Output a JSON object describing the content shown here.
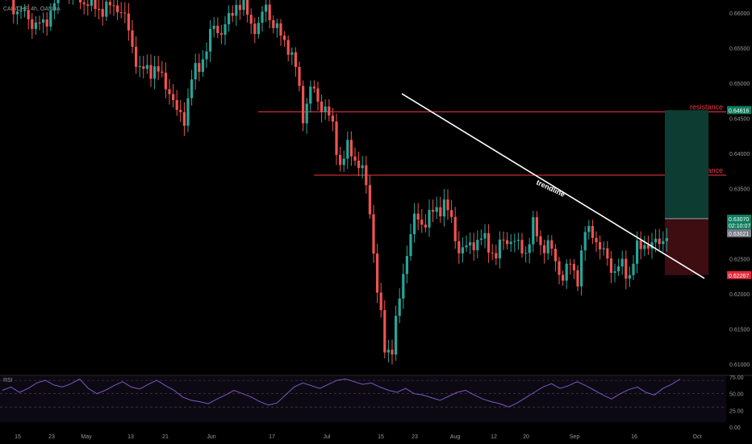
{
  "chart_data": {
    "type": "candlestick",
    "symbol_label": "CAD/CHF, 4h, OANDA",
    "ylim": [
      0.6085,
      0.6615
    ],
    "price_ticks": [
      "0.66000",
      "0.65500",
      "0.65000",
      "0.64500",
      "0.64000",
      "0.63500",
      "0.63000",
      "0.62500",
      "0.62000",
      "0.61500",
      "0.61000"
    ],
    "date_ticks": [
      "15",
      "23",
      "May",
      "13",
      "21",
      "Jun",
      "17",
      "Jul",
      "15",
      "23",
      "Aug",
      "12",
      "20",
      "Sep",
      "16",
      "Oct"
    ],
    "price_path": [
      [
        0,
        0.6635
      ],
      [
        3,
        0.661
      ],
      [
        6,
        0.6595
      ],
      [
        9,
        0.6585
      ],
      [
        11,
        0.658
      ],
      [
        13,
        0.6605
      ],
      [
        16,
        0.664
      ],
      [
        20,
        0.6625
      ],
      [
        24,
        0.661
      ],
      [
        28,
        0.6605
      ],
      [
        31,
        0.6612
      ],
      [
        33,
        0.659
      ],
      [
        35,
        0.6555
      ],
      [
        37,
        0.6515
      ],
      [
        39,
        0.652
      ],
      [
        41,
        0.6522
      ],
      [
        43,
        0.6505
      ],
      [
        45,
        0.6492
      ],
      [
        47,
        0.6455
      ],
      [
        49,
        0.6452
      ],
      [
        51,
        0.6505
      ],
      [
        53,
        0.6525
      ],
      [
        55,
        0.655
      ],
      [
        57,
        0.658
      ],
      [
        59,
        0.6575
      ],
      [
        61,
        0.6588
      ],
      [
        63,
        0.6615
      ],
      [
        65,
        0.661
      ],
      [
        67,
        0.6585
      ],
      [
        69,
        0.658
      ],
      [
        71,
        0.661
      ],
      [
        73,
        0.6585
      ],
      [
        75,
        0.6565
      ],
      [
        77,
        0.6555
      ],
      [
        79,
        0.652
      ],
      [
        81,
        0.6455
      ],
      [
        83,
        0.6492
      ],
      [
        85,
        0.6475
      ],
      [
        87,
        0.6465
      ],
      [
        89,
        0.6435
      ],
      [
        91,
        0.6385
      ],
      [
        93,
        0.6405
      ],
      [
        95,
        0.6395
      ],
      [
        97,
        0.6375
      ],
      [
        99,
        0.632
      ],
      [
        101,
        0.6205
      ],
      [
        103,
        0.612
      ],
      [
        105,
        0.6125
      ],
      [
        107,
        0.619
      ],
      [
        109,
        0.6265
      ],
      [
        111,
        0.6305
      ],
      [
        113,
        0.6302
      ],
      [
        115,
        0.631
      ],
      [
        117,
        0.6318
      ],
      [
        119,
        0.6332
      ],
      [
        121,
        0.63
      ],
      [
        123,
        0.6265
      ],
      [
        125,
        0.6262
      ],
      [
        127,
        0.6275
      ],
      [
        129,
        0.6278
      ],
      [
        131,
        0.6268
      ],
      [
        133,
        0.6255
      ],
      [
        135,
        0.6275
      ],
      [
        137,
        0.628
      ],
      [
        139,
        0.6265
      ],
      [
        141,
        0.6262
      ],
      [
        143,
        0.6295
      ],
      [
        145,
        0.627
      ],
      [
        147,
        0.627
      ],
      [
        149,
        0.6245
      ],
      [
        151,
        0.6225
      ],
      [
        153,
        0.624
      ],
      [
        155,
        0.6225
      ],
      [
        157,
        0.6285
      ],
      [
        159,
        0.6292
      ],
      [
        161,
        0.626
      ],
      [
        163,
        0.6252
      ],
      [
        165,
        0.623
      ],
      [
        167,
        0.624
      ],
      [
        169,
        0.6228
      ],
      [
        171,
        0.6262
      ],
      [
        173,
        0.6275
      ],
      [
        175,
        0.6265
      ],
      [
        177,
        0.6278
      ],
      [
        179,
        0.6282
      ]
    ],
    "trendline": {
      "label": "trendline",
      "start": [
        0.6485
      ],
      "end": [
        0.6222
      ]
    },
    "resistance_lines": [
      {
        "label": "resistance",
        "price": 0.6459
      },
      {
        "label": "resistance",
        "price": 0.6369
      }
    ],
    "position": {
      "target": "0.64616",
      "entry": "0.63070",
      "countdown": "02:10:07",
      "current": "0.63021",
      "stop": "0.62267"
    },
    "indicator": {
      "name": "RSI",
      "ylim": [
        0,
        75
      ],
      "ticks": [
        "75.00",
        "50.00",
        "25.00",
        "0.00"
      ],
      "levels": [
        70,
        50,
        30
      ],
      "values": [
        55,
        60,
        52,
        58,
        66,
        70,
        63,
        60,
        65,
        72,
        58,
        50,
        55,
        62,
        68,
        60,
        57,
        64,
        70,
        62,
        55,
        45,
        40,
        38,
        35,
        42,
        48,
        55,
        50,
        45,
        38,
        33,
        36,
        48,
        60,
        66,
        62,
        58,
        64,
        70,
        72,
        68,
        64,
        66,
        60,
        55,
        52,
        58,
        50,
        48,
        44,
        40,
        46,
        52,
        55,
        48,
        42,
        38,
        35,
        30,
        36,
        44,
        52,
        60,
        65,
        58,
        62,
        68,
        62,
        55,
        48,
        42,
        50,
        56,
        60,
        52,
        48,
        58,
        64,
        72
      ]
    },
    "colors": {
      "up": "#26a69a",
      "down": "#ef5350",
      "resistance": "#f23645",
      "target_fill": "#0d3d32",
      "stop_fill": "#3d0d12",
      "rsi": "#7e57c2"
    }
  }
}
